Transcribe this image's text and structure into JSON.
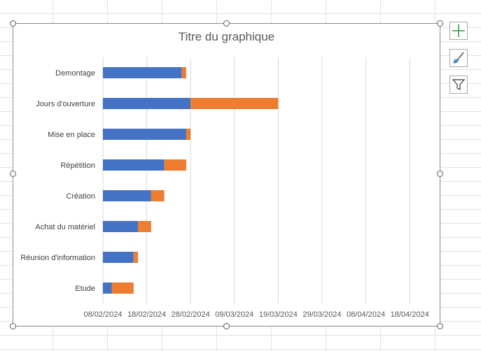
{
  "chart_data": {
    "type": "bar",
    "orientation": "horizontal",
    "stacked": true,
    "title": "Titre du graphique",
    "categories": [
      "Etude",
      "Réunion d'information",
      "Achat du matériel",
      "Création",
      "Répétition",
      "Mise en place",
      "Jours d'ouverture",
      "Demontage"
    ],
    "series": [
      {
        "values": [
          "2024-02-10",
          "2024-02-15",
          "2024-02-16",
          "2024-02-19",
          "2024-02-22",
          "2024-02-27",
          "2024-02-28",
          "2024-02-26"
        ],
        "color": "#4472C4"
      },
      {
        "values": [
          5,
          1,
          3,
          3,
          5,
          1,
          20,
          1
        ],
        "color": "#ED7D31"
      }
    ],
    "xlim": [
      "2024-02-08",
      "2024-04-25"
    ],
    "x_ticks": [
      "08/02/2024",
      "18/02/2024",
      "28/02/2024",
      "09/03/2024",
      "19/03/2024",
      "29/03/2024",
      "08/04/2024",
      "18/04/2024"
    ],
    "grid": true,
    "legend": "none"
  },
  "icons": {
    "add_elements": "plus-icon",
    "styles": "paintbrush-icon",
    "filters": "funnel-icon"
  }
}
